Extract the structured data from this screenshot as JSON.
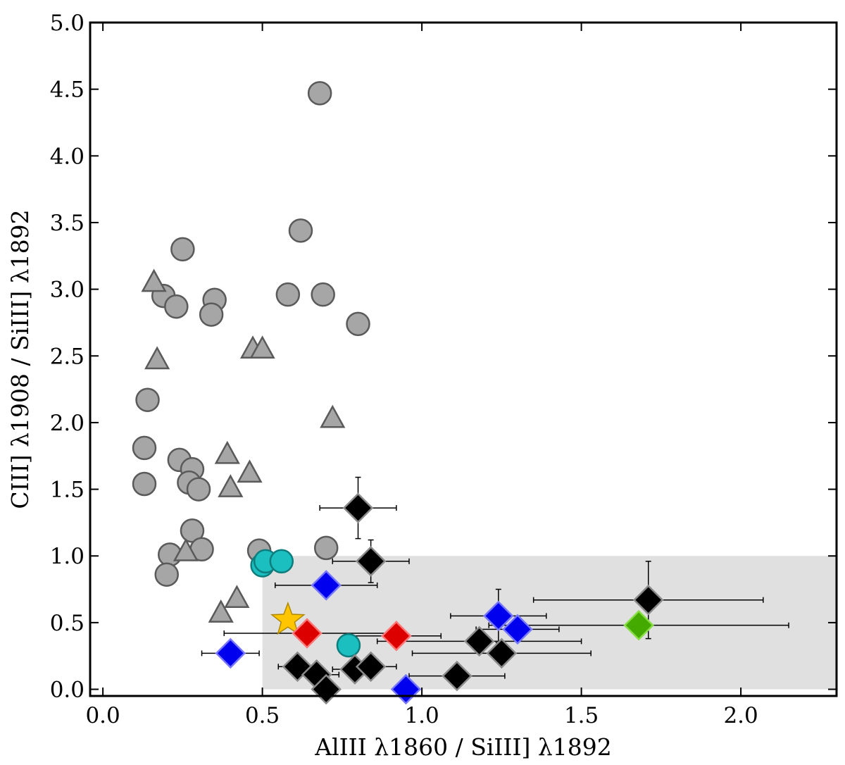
{
  "chart_data": {
    "type": "scatter",
    "xlabel": "AlIII λ1860 / SiIII] λ1892",
    "ylabel": "CIII] λ1908 / SiIII] λ1892",
    "xlim": [
      -0.04,
      2.3
    ],
    "ylim": [
      -0.05,
      5.0
    ],
    "x_ticks": [
      "0.0",
      "0.5",
      "1.0",
      "1.5",
      "2.0"
    ],
    "x_tick_values": [
      0.0,
      0.5,
      1.0,
      1.5,
      2.0
    ],
    "y_ticks": [
      "0.0",
      "0.5",
      "1.0",
      "1.5",
      "2.0",
      "2.5",
      "3.0",
      "3.5",
      "4.0",
      "4.5",
      "5.0"
    ],
    "y_tick_values": [
      0.0,
      0.5,
      1.0,
      1.5,
      2.0,
      2.5,
      3.0,
      3.5,
      4.0,
      4.5,
      5.0
    ],
    "grid": false,
    "legend": "none",
    "shaded_region": {
      "x": [
        0.5,
        2.3
      ],
      "y": [
        0.0,
        1.0
      ],
      "color": "#e0e0e0"
    },
    "series": [
      {
        "marker": "circle",
        "color": "#a6a6a6",
        "edge": "#5a5a5a",
        "points": [
          {
            "x": 0.68,
            "y": 4.47
          },
          {
            "x": 0.62,
            "y": 3.44
          },
          {
            "x": 0.25,
            "y": 3.3
          },
          {
            "x": 0.19,
            "y": 2.95
          },
          {
            "x": 0.23,
            "y": 2.87
          },
          {
            "x": 0.35,
            "y": 2.92
          },
          {
            "x": 0.34,
            "y": 2.81
          },
          {
            "x": 0.58,
            "y": 2.96
          },
          {
            "x": 0.69,
            "y": 2.96
          },
          {
            "x": 0.8,
            "y": 2.74
          },
          {
            "x": 0.14,
            "y": 2.17
          },
          {
            "x": 0.13,
            "y": 1.81
          },
          {
            "x": 0.13,
            "y": 1.54
          },
          {
            "x": 0.24,
            "y": 1.72
          },
          {
            "x": 0.28,
            "y": 1.65
          },
          {
            "x": 0.27,
            "y": 1.55
          },
          {
            "x": 0.3,
            "y": 1.5
          },
          {
            "x": 0.28,
            "y": 1.19
          },
          {
            "x": 0.31,
            "y": 1.05
          },
          {
            "x": 0.21,
            "y": 1.01
          },
          {
            "x": 0.2,
            "y": 0.86
          },
          {
            "x": 0.49,
            "y": 1.04
          },
          {
            "x": 0.7,
            "y": 1.06
          }
        ]
      },
      {
        "marker": "triangle",
        "color": "#a6a6a6",
        "edge": "#5a5a5a",
        "points": [
          {
            "x": 0.16,
            "y": 3.05
          },
          {
            "x": 0.17,
            "y": 2.47
          },
          {
            "x": 0.47,
            "y": 2.55
          },
          {
            "x": 0.5,
            "y": 2.55
          },
          {
            "x": 0.72,
            "y": 2.03
          },
          {
            "x": 0.39,
            "y": 1.76
          },
          {
            "x": 0.4,
            "y": 1.51
          },
          {
            "x": 0.46,
            "y": 1.62
          },
          {
            "x": 0.26,
            "y": 1.03
          },
          {
            "x": 0.42,
            "y": 0.68
          },
          {
            "x": 0.37,
            "y": 0.57
          }
        ]
      },
      {
        "marker": "circle",
        "color": "#1bbfbf",
        "edge": "#0f7d7d",
        "points": [
          {
            "x": 0.5,
            "y": 0.93
          },
          {
            "x": 0.51,
            "y": 0.96
          },
          {
            "x": 0.56,
            "y": 0.96
          },
          {
            "x": 0.77,
            "y": 0.33
          }
        ]
      },
      {
        "marker": "star",
        "color": "#ffc600",
        "edge": "#b08800",
        "points": [
          {
            "x": 0.58,
            "y": 0.52
          }
        ]
      },
      {
        "marker": "diamond",
        "color": "#dd0000",
        "edge": "#ff7777",
        "points": [
          {
            "x": 0.64,
            "y": 0.42,
            "xerr": 0.26,
            "yerr": 0.06
          },
          {
            "x": 0.92,
            "y": 0.4,
            "xerr": 0.14,
            "yerr": 0.08
          }
        ]
      },
      {
        "marker": "diamond",
        "color": "#0000ee",
        "edge": "#7777ff",
        "points": [
          {
            "x": 0.4,
            "y": 0.27,
            "xerr": 0.09,
            "yerr": 0.0
          },
          {
            "x": 0.7,
            "y": 0.78,
            "xerr": 0.16,
            "yerr": 0.0
          },
          {
            "x": 0.95,
            "y": 0.0,
            "xerr": 0.0,
            "yerr": 0.0
          },
          {
            "x": 1.24,
            "y": 0.55,
            "xerr": 0.15,
            "yerr": 0.2
          },
          {
            "x": 1.3,
            "y": 0.45,
            "xerr": 0.13,
            "yerr": 0.0
          }
        ]
      },
      {
        "marker": "diamond",
        "color": "#44aa00",
        "edge": "#88dd44",
        "points": [
          {
            "x": 1.68,
            "y": 0.48,
            "xerr": 0.47,
            "yerr": 0.08
          }
        ]
      },
      {
        "marker": "diamond",
        "color": "#000000",
        "edge": "#8a8a8a",
        "points": [
          {
            "x": 0.8,
            "y": 1.36,
            "xerr": 0.12,
            "yerr": 0.23
          },
          {
            "x": 0.84,
            "y": 0.96,
            "xerr": 0.12,
            "yerr": 0.16
          },
          {
            "x": 1.71,
            "y": 0.67,
            "xerr": 0.36,
            "yerr": 0.29
          },
          {
            "x": 1.18,
            "y": 0.36,
            "xerr": 0.32,
            "yerr": 0.0
          },
          {
            "x": 1.25,
            "y": 0.27,
            "xerr": 0.28,
            "yerr": 0.0
          },
          {
            "x": 0.61,
            "y": 0.17,
            "xerr": 0.06,
            "yerr": 0.0
          },
          {
            "x": 0.67,
            "y": 0.11,
            "xerr": 0.07,
            "yerr": 0.0
          },
          {
            "x": 0.7,
            "y": 0.0,
            "xerr": 0.0,
            "yerr": 0.0
          },
          {
            "x": 0.79,
            "y": 0.15,
            "xerr": 0.07,
            "yerr": 0.0
          },
          {
            "x": 0.84,
            "y": 0.17,
            "xerr": 0.08,
            "yerr": 0.0
          },
          {
            "x": 1.11,
            "y": 0.1,
            "xerr": 0.15,
            "yerr": 0.0
          }
        ]
      }
    ]
  }
}
